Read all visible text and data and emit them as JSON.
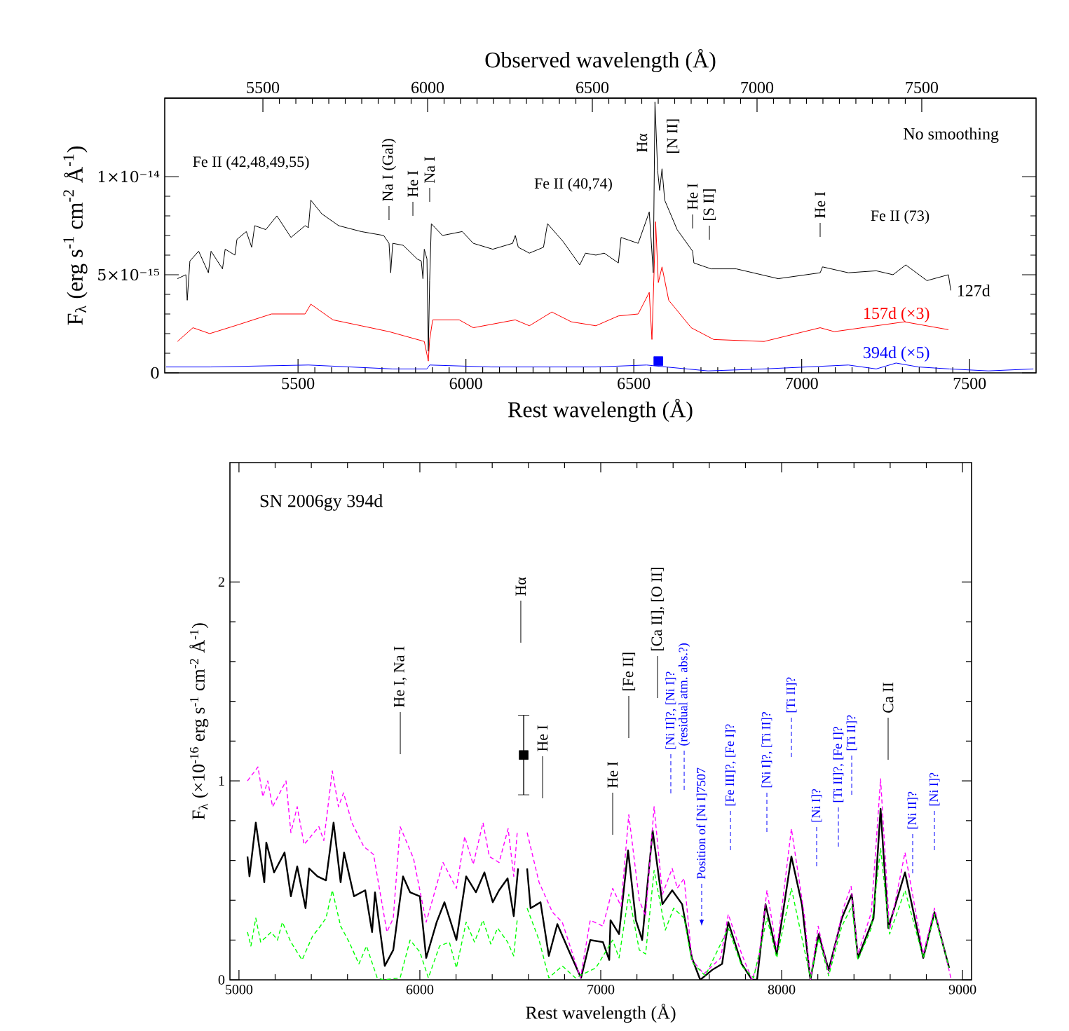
{
  "chart_data": [
    {
      "type": "line",
      "xlabel": "Rest wavelength (Å)",
      "x2label": "Observed wavelength (Å)",
      "ylabel": "F$_{λ}$ (erg s$^{-1}$ cm$^{-2}$ Å$^{-1}$)",
      "xlim": [
        5103,
        7698
      ],
      "xticks": [
        5500,
        6000,
        6500,
        7000,
        7500
      ],
      "x2lim": [
        5202,
        7847
      ],
      "x2ticks": [
        5500,
        6000,
        6500,
        7000,
        7500
      ],
      "ylim": [
        0,
        1.4e-14
      ],
      "yticks": [
        0,
        {
          "value": 5e-15,
          "label": "5×10⁻¹⁵"
        },
        {
          "value": 1e-14,
          "label": "1×10⁻¹⁴"
        }
      ],
      "series": [
        {
          "name": "127d",
          "color": "#000000",
          "x": [
            5141,
            5166,
            5170,
            5178,
            5204,
            5233,
            5241,
            5275,
            5283,
            5312,
            5318,
            5346,
            5362,
            5371,
            5404,
            5437,
            5479,
            5521,
            5531,
            5538,
            5571,
            5621,
            5688,
            5755,
            5771,
            5776,
            5782,
            5813,
            5855,
            5867,
            5872,
            5876,
            5884,
            5888,
            5892,
            5897,
            5930,
            5989,
            6022,
            6080,
            6139,
            6147,
            6156,
            6189,
            6231,
            6243,
            6289,
            6339,
            6356,
            6387,
            6412,
            6454,
            6462,
            6513,
            6546,
            6558,
            6563,
            6571,
            6577,
            6584,
            6592,
            6629,
            6675,
            6679,
            6713,
            6730,
            6805,
            6930,
            7055,
            7062,
            7139,
            7222,
            7272,
            7310,
            7373,
            7437,
            7444
          ],
          "values": [
            4.8e-15,
            5e-15,
            3.7e-15,
            5.7e-15,
            6.2e-15,
            5.1e-15,
            6.2e-15,
            5.3e-15,
            6.3e-15,
            6e-15,
            6.8e-15,
            7.2e-15,
            6.4e-15,
            7.5e-15,
            7.3e-15,
            8e-15,
            6.9e-15,
            7.5e-15,
            7.4e-15,
            8.8e-15,
            8.1e-15,
            7.5e-15,
            7.2e-15,
            7e-15,
            6.6e-15,
            5.1e-15,
            6.6e-15,
            6.5e-15,
            5.8e-15,
            5.7e-15,
            4.8e-15,
            6.3e-15,
            5.8e-15,
            1.1e-15,
            4.7e-15,
            7.6e-15,
            7e-15,
            7.2e-15,
            6.6e-15,
            6.3e-15,
            6.6e-15,
            7e-15,
            6.4e-15,
            6.1e-15,
            6.4e-15,
            7.6e-15,
            6.7e-15,
            5.5e-15,
            6.1e-15,
            6e-15,
            6.1e-15,
            5.6e-15,
            6.9e-15,
            6.6e-15,
            8.2e-15,
            5.1e-15,
            1.38e-14,
            1.03e-14,
            9.3e-15,
            1.04e-14,
            8.8e-15,
            7.3e-15,
            6.2e-15,
            5.6e-15,
            5.4e-15,
            5.3e-15,
            5.3e-15,
            4.8e-15,
            5.1e-15,
            5.4e-15,
            5.1e-15,
            5.2e-15,
            5e-15,
            5.5e-15,
            4.7e-15,
            5e-15,
            4.2e-15
          ]
        },
        {
          "name": "157d (×3)",
          "color": "#ff0000",
          "x": [
            5141,
            5187,
            5237,
            5312,
            5421,
            5521,
            5538,
            5604,
            5688,
            5771,
            5813,
            5876,
            5888,
            5892,
            5901,
            5980,
            6022,
            6147,
            6189,
            6256,
            6314,
            6387,
            6454,
            6513,
            6546,
            6554,
            6565,
            6573,
            6584,
            6604,
            6671,
            6738,
            6888,
            7055,
            7097,
            7222,
            7306,
            7437
          ],
          "values": [
            1.6e-15,
            2.3e-15,
            2e-15,
            2.4e-15,
            3e-15,
            3e-15,
            3.5e-15,
            2.7e-15,
            2.4e-15,
            2.1e-15,
            1.9e-15,
            1.6e-15,
            6e-16,
            1.7e-15,
            2.7e-15,
            2.7e-15,
            2.3e-15,
            2.7e-15,
            2.4e-15,
            3.1e-15,
            2.6e-15,
            2.4e-15,
            2.9e-15,
            3e-15,
            4.1e-15,
            1.7e-15,
            7.7e-15,
            4.6e-15,
            5.4e-15,
            3.7e-15,
            2.3e-15,
            1.7e-15,
            1.6e-15,
            2.3e-15,
            2.1e-15,
            2.4e-15,
            2.6e-15,
            2.2e-15
          ]
        },
        {
          "name": "394d (×5)",
          "color": "#0000ff",
          "x": [
            5107,
            5239,
            5531,
            5782,
            5884,
            5892,
            6074,
            6387,
            6538,
            6596,
            6721,
            6888,
            7139,
            7222,
            7281,
            7348,
            7440,
            7556,
            7690
          ],
          "values": [
            3e-16,
            3e-16,
            4e-16,
            2e-16,
            2e-16,
            4e-16,
            3e-16,
            3e-16,
            4e-16,
            3e-16,
            1e-16,
            2e-16,
            4e-16,
            2e-16,
            5e-16,
            3e-16,
            2e-16,
            1e-16,
            2e-16
          ]
        },
        {
          "type": "scatter",
          "marker": "square",
          "color": "#0000ff",
          "x": [
            6573
          ],
          "values": [
            6e-16
          ]
        }
      ],
      "legend": "right",
      "annotations": [
        "Fe II (42,48,49,55)",
        "Na I (Gal)",
        "He I",
        "Na I",
        "Fe II (40,74)",
        "Hα",
        "[N II]",
        "He I",
        "[S II]",
        "He I",
        "Fe II (73)",
        "No smoothing"
      ]
    },
    {
      "type": "line",
      "xlabel": "Rest wavelength (Å)",
      "ylabel": "F$_{λ}$ (×10$^{-16}$ erg s$^{-1}$ cm$^{-2}$ Å$^{-1}$)",
      "xlim": [
        4950,
        9050
      ],
      "xticks": [
        5000,
        6000,
        7000,
        8000,
        9000
      ],
      "ylim": [
        0,
        2.6
      ],
      "yticks": [
        0,
        1,
        2
      ],
      "series": [
        {
          "color": "#000000",
          "x": [
            5047,
            5058,
            5093,
            5140,
            5151,
            5194,
            5252,
            5287,
            5322,
            5368,
            5388,
            5434,
            5481,
            5523,
            5562,
            5581,
            5636,
            5698,
            5736,
            5752,
            5806,
            5853,
            5907,
            5946,
            6000,
            6035,
            6093,
            6136,
            6202,
            6256,
            6310,
            6357,
            6403,
            6438,
            6485,
            6519,
            6543,
            6568,
            6593,
            6612,
            6667,
            6713,
            6760,
            6822,
            6891,
            6942,
            7012,
            7047,
            7054,
            7101,
            7151,
            7194,
            7229,
            7287,
            7341,
            7395,
            7450,
            7504,
            7550,
            7616,
            7671,
            7705,
            7779,
            7837,
            7864,
            7911,
            7973,
            8054,
            8112,
            8159,
            8205,
            8260,
            8333,
            8388,
            8422,
            8508,
            8547,
            8590,
            8682,
            8783,
            8845,
            8926
          ],
          "values": [
            0.62,
            0.52,
            0.79,
            0.49,
            0.69,
            0.54,
            0.64,
            0.42,
            0.57,
            0.36,
            0.56,
            0.52,
            0.5,
            0.79,
            0.49,
            0.64,
            0.42,
            0.45,
            0.24,
            0.44,
            0.07,
            0.15,
            0.52,
            0.44,
            0.42,
            0.11,
            0.29,
            0.39,
            0.2,
            0.52,
            0.44,
            0.54,
            0.39,
            0.45,
            0.51,
            0.32,
            0.56,
            null,
            0.56,
            0.36,
            0.39,
            0.12,
            0.28,
            0.15,
            0.01,
            0.2,
            0.19,
            0.1,
            0.3,
            0.23,
            0.65,
            0.3,
            0.2,
            0.75,
            0.38,
            0.45,
            0.38,
            0.11,
            0.0,
            0.05,
            0.08,
            0.29,
            0.08,
            0.0,
            0.0,
            0.38,
            0.13,
            0.62,
            0.38,
            0.0,
            0.23,
            0.05,
            0.31,
            0.43,
            0.11,
            0.31,
            0.86,
            0.26,
            0.54,
            0.11,
            0.34,
            0.06
          ]
        },
        {
          "color": "#ff00ff",
          "line_style": "dashed",
          "x": [
            5047,
            5105,
            5132,
            5159,
            5186,
            5260,
            5287,
            5322,
            5360,
            5442,
            5469,
            5516,
            5550,
            5578,
            5624,
            5690,
            5744,
            5818,
            5853,
            5891,
            5965,
            6035,
            6128,
            6202,
            6248,
            6295,
            6349,
            6384,
            6438,
            6488,
            6519,
            6539,
            6568,
            6593,
            6659,
            6733,
            6787,
            6888,
            6942,
            7012,
            7066,
            7112,
            7155,
            7213,
            7248,
            7295,
            7341,
            7395,
            7423,
            7461,
            7504,
            7570,
            7663,
            7705,
            7779,
            7837,
            7872,
            7919,
            7973,
            8054,
            8128,
            8159,
            8202,
            8260,
            8341,
            8384,
            8422,
            8496,
            8547,
            8597,
            8682,
            8783,
            8845,
            8938
          ],
          "values": [
            1.0,
            1.07,
            0.92,
            1.0,
            0.87,
            1.0,
            0.74,
            0.87,
            0.68,
            0.77,
            0.7,
            1.05,
            0.87,
            0.94,
            0.79,
            0.67,
            0.63,
            0.24,
            0.31,
            0.77,
            0.61,
            0.29,
            0.59,
            0.46,
            0.72,
            0.58,
            0.79,
            0.62,
            0.59,
            0.76,
            0.52,
            0.75,
            null,
            0.74,
            0.49,
            0.34,
            0.29,
            0.01,
            0.3,
            0.27,
            0.46,
            0.37,
            0.83,
            0.4,
            0.32,
            0.87,
            0.43,
            0.56,
            0.46,
            0.51,
            0.1,
            0.03,
            0.11,
            0.33,
            0.13,
            0.0,
            0.1,
            0.45,
            0.15,
            0.76,
            0.31,
            0.0,
            0.27,
            0.03,
            0.36,
            0.47,
            0.13,
            0.34,
            1.01,
            0.25,
            0.64,
            0.13,
            0.36,
            0.0
          ]
        },
        {
          "color": "#00ff00",
          "line_style": "dashed",
          "x": [
            5047,
            5066,
            5093,
            5120,
            5178,
            5213,
            5240,
            5287,
            5349,
            5407,
            5442,
            5481,
            5516,
            5562,
            5609,
            5663,
            5705,
            5764,
            5800,
            5891,
            5946,
            6000,
            6047,
            6109,
            6163,
            6202,
            6256,
            6302,
            6349,
            6392,
            6430,
            6485,
            6519,
            6539,
            6568,
            6593,
            6659,
            6713,
            6787,
            6860,
            6973,
            7066,
            7101,
            7155,
            7213,
            7248,
            7295,
            7357,
            7403,
            7461,
            7504,
            7578,
            7705,
            7779,
            7845,
            7919,
            7973,
            8054,
            8159,
            8205,
            8260,
            8333,
            8388,
            8422,
            8496,
            8547,
            8597,
            8682,
            8783,
            8845,
            8926
          ],
          "values": [
            0.24,
            0.17,
            0.31,
            0.19,
            0.24,
            0.2,
            0.29,
            0.19,
            0.1,
            0.22,
            0.26,
            0.31,
            0.45,
            0.27,
            0.19,
            0.08,
            0.17,
            0.01,
            0.0,
            0.01,
            0.2,
            0.14,
            0.01,
            0.17,
            0.19,
            0.06,
            0.29,
            0.19,
            0.3,
            0.18,
            0.26,
            0.19,
            0.12,
            0.31,
            null,
            0.36,
            0.2,
            0.01,
            0.07,
            0.01,
            0.06,
            0.2,
            0.11,
            0.43,
            0.15,
            0.13,
            0.55,
            0.25,
            0.36,
            0.31,
            0.09,
            0.02,
            0.26,
            0.07,
            0.01,
            0.31,
            0.11,
            0.46,
            0.01,
            0.21,
            0.02,
            0.27,
            0.37,
            0.1,
            0.26,
            0.66,
            0.23,
            0.45,
            0.11,
            0.33,
            0.06
          ]
        },
        {
          "type": "scatter",
          "marker": "square",
          "color": "#000000",
          "x": [
            6574
          ],
          "values": [
            1.13
          ],
          "errors": [
            [
              0.93,
              1.33
            ]
          ]
        }
      ],
      "annotations": [
        "SN 2006gy 394d",
        "He I, Na I",
        "Hα",
        "He I",
        "He I",
        "[Fe II]",
        "[Ca II], [O II]",
        "[Ni II]?, [Ni I]?",
        "(residual atm. abs.?)",
        "Position of [Ni I]7507",
        "[Fe III]?, [Fe I]?",
        "[Ni I]?, [Ti II]?",
        "[Ti II]?",
        "[Ni I]?",
        "[Ti II]?, [Fe I]?",
        "[Ti II]?",
        "Ca II",
        "[Ni II]?",
        "[Ni I]?"
      ]
    }
  ]
}
